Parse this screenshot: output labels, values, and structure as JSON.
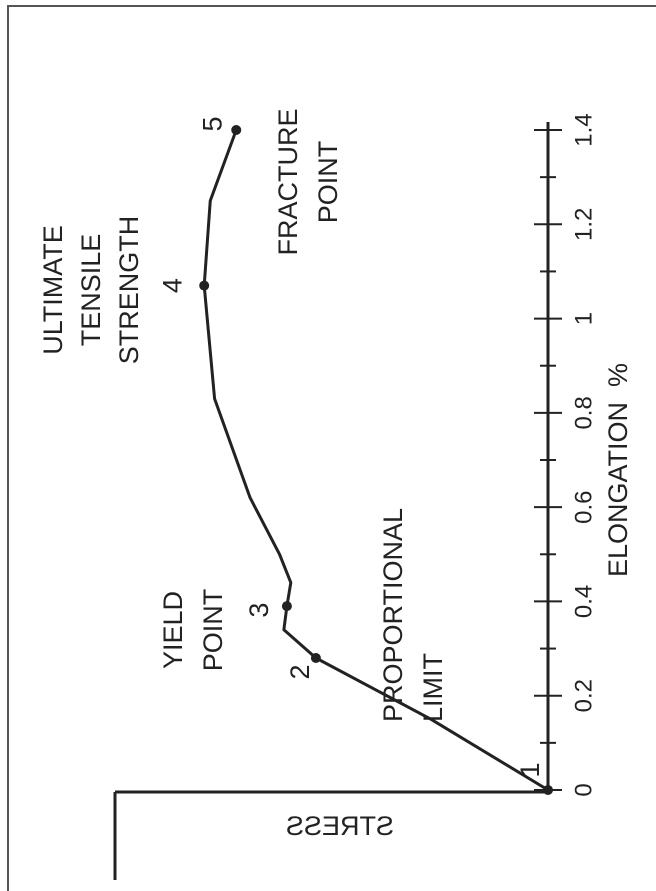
{
  "chart_data": {
    "type": "line",
    "x_label": "ELONGATION  %",
    "y_label": "STRESS",
    "x": [
      0,
      0.15,
      0.28,
      0.34,
      0.39,
      0.44,
      0.5,
      0.62,
      0.83,
      1.07,
      1.25,
      1.4
    ],
    "values": [
      0,
      27,
      53.6,
      61,
      60.3,
      59.4,
      62,
      68.8,
      77,
      79.4,
      78,
      72
    ],
    "color": "#222222",
    "xlim": [
      0,
      1.4
    ],
    "ylim": [
      0,
      100
    ],
    "xticks": [
      0,
      0.2,
      0.4,
      0.6,
      0.8,
      1.0,
      1.2,
      1.4
    ],
    "minor_xticks": [
      0.1,
      0.3,
      0.5,
      0.7,
      0.9,
      1.1,
      1.3
    ],
    "points": [
      {
        "label": "1",
        "x": 0,
        "y": 0
      },
      {
        "label": "2",
        "x": 0.28,
        "y": 53.6
      },
      {
        "label": "3",
        "x": 0.39,
        "y": 60.3
      },
      {
        "label": "4",
        "x": 1.07,
        "y": 79.4
      },
      {
        "label": "5",
        "x": 1.4,
        "y": 72
      }
    ],
    "annotations": [
      {
        "lines": [
          "ULTIMATE",
          "TENSILE",
          "STRENGTH"
        ]
      },
      {
        "lines": [
          "YIELD",
          "POINT"
        ]
      },
      {
        "lines": [
          "PROPORTIONAL",
          "LIMIT"
        ]
      },
      {
        "lines": [
          "FRACTURE",
          "POINT"
        ]
      }
    ]
  }
}
